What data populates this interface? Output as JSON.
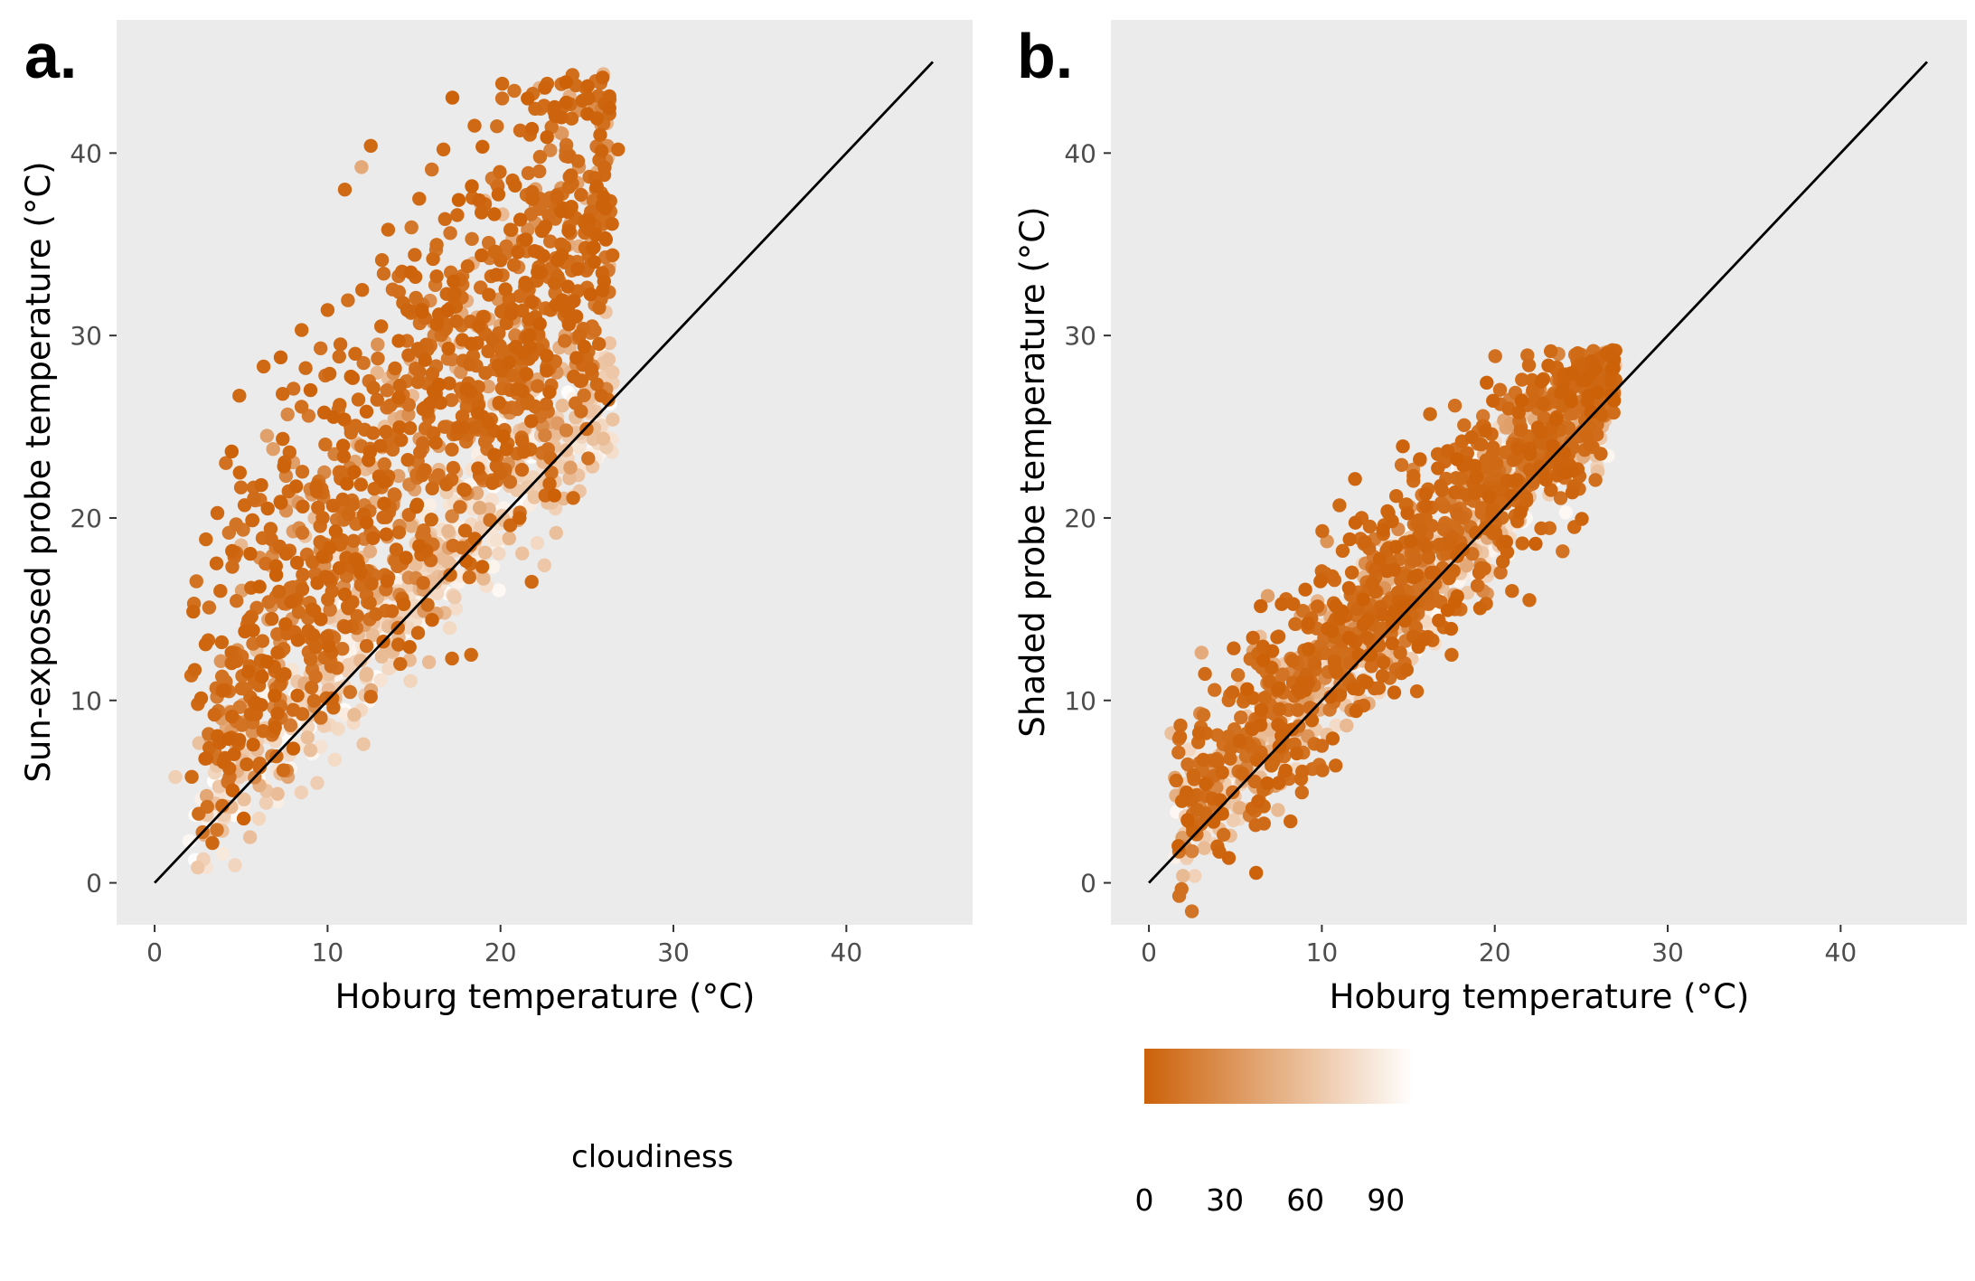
{
  "chart_data": [
    {
      "panel_label": "a.",
      "type": "scatter",
      "xlabel": "Hoburg temperature (°C)",
      "ylabel": "Sun-exposed probe temperature (°C)",
      "xlim": [
        -2.2,
        47.3
      ],
      "ylim": [
        -2.3,
        47.3
      ],
      "x_ticks": [
        0,
        10,
        20,
        30,
        40
      ],
      "y_ticks": [
        0,
        10,
        20,
        30,
        40
      ],
      "x_tick_labels": [
        "0",
        "10",
        "20",
        "30",
        "40"
      ],
      "y_tick_labels": [
        "0",
        "10",
        "20",
        "30",
        "40"
      ],
      "background": "#ebebeb",
      "grid": false,
      "reference_line": {
        "from": [
          0,
          0
        ],
        "to": [
          45,
          45
        ],
        "color": "#000000"
      },
      "color_variable": "cloudiness",
      "approximate_point_count": 1800,
      "points": [
        [
          1.2,
          5.8,
          70
        ],
        [
          2.0,
          2.3,
          95
        ],
        [
          2.5,
          9.8,
          5
        ],
        [
          3.1,
          13.3,
          5
        ],
        [
          3.4,
          7.5,
          60
        ],
        [
          3.5,
          3.3,
          90
        ],
        [
          3.8,
          16.0,
          5
        ],
        [
          4.1,
          8.0,
          40
        ],
        [
          4.3,
          10.5,
          10
        ],
        [
          4.6,
          5.5,
          80
        ],
        [
          4.9,
          26.7,
          5
        ],
        [
          5.0,
          18.5,
          55
        ],
        [
          5.2,
          20.7,
          5
        ],
        [
          5.4,
          11.5,
          15
        ],
        [
          5.6,
          14.6,
          5
        ],
        [
          5.9,
          6.8,
          75
        ],
        [
          6.1,
          21.0,
          10
        ],
        [
          6.3,
          28.3,
          5
        ],
        [
          6.5,
          24.5,
          40
        ],
        [
          6.7,
          17.4,
          45
        ],
        [
          6.9,
          9.6,
          70
        ],
        [
          7.2,
          12.5,
          85
        ],
        [
          7.4,
          26.8,
          5
        ],
        [
          7.6,
          20.4,
          30
        ],
        [
          7.8,
          23.6,
          5
        ],
        [
          8.0,
          16.2,
          10
        ],
        [
          8.3,
          11.0,
          90
        ],
        [
          8.5,
          30.3,
          5
        ],
        [
          8.7,
          19.0,
          60
        ],
        [
          8.9,
          25.6,
          15
        ],
        [
          9.2,
          13.7,
          80
        ],
        [
          9.4,
          21.8,
          5
        ],
        [
          9.6,
          29.3,
          10
        ],
        [
          9.8,
          17.5,
          50
        ],
        [
          10.0,
          31.4,
          5
        ],
        [
          10.2,
          15.4,
          85
        ],
        [
          10.4,
          23.5,
          20
        ],
        [
          10.7,
          26.2,
          5
        ],
        [
          10.9,
          18.4,
          70
        ],
        [
          11.0,
          38.0,
          5
        ],
        [
          11.2,
          20.2,
          5
        ],
        [
          11.4,
          14.6,
          90
        ],
        [
          11.6,
          29.0,
          5
        ],
        [
          11.8,
          24.0,
          45
        ],
        [
          12.0,
          32.5,
          5
        ],
        [
          12.2,
          17.0,
          80
        ],
        [
          12.4,
          27.5,
          10
        ],
        [
          12.5,
          40.4,
          5
        ],
        [
          12.7,
          21.6,
          5
        ],
        [
          12.9,
          16.0,
          95
        ],
        [
          13.1,
          30.5,
          5
        ],
        [
          13.3,
          25.0,
          60
        ],
        [
          13.5,
          35.8,
          5
        ],
        [
          13.7,
          19.3,
          85
        ],
        [
          13.9,
          28.2,
          5
        ],
        [
          14.1,
          22.3,
          40
        ],
        [
          14.3,
          33.5,
          5
        ],
        [
          14.5,
          14.5,
          90
        ],
        [
          14.7,
          26.2,
          10
        ],
        [
          14.9,
          31.3,
          5
        ],
        [
          15.1,
          18.6,
          75
        ],
        [
          15.3,
          37.5,
          5
        ],
        [
          15.5,
          23.8,
          15
        ],
        [
          15.7,
          29.5,
          5
        ],
        [
          15.9,
          20.7,
          90
        ],
        [
          16.1,
          34.2,
          5
        ],
        [
          16.3,
          27.3,
          50
        ],
        [
          16.5,
          16.3,
          80
        ],
        [
          16.7,
          40.2,
          5
        ],
        [
          16.9,
          25.0,
          20
        ],
        [
          17.1,
          31.5,
          5
        ],
        [
          17.3,
          21.5,
          85
        ],
        [
          17.5,
          36.6,
          5
        ],
        [
          17.7,
          28.0,
          30
        ],
        [
          17.9,
          19.0,
          95
        ],
        [
          18.1,
          33.8,
          5
        ],
        [
          18.3,
          26.0,
          65
        ],
        [
          18.5,
          41.5,
          5
        ],
        [
          18.7,
          23.5,
          90
        ],
        [
          18.9,
          30.4,
          10
        ],
        [
          19.1,
          37.2,
          5
        ],
        [
          19.3,
          27.2,
          40
        ],
        [
          19.5,
          22.0,
          85
        ],
        [
          19.7,
          34.6,
          5
        ],
        [
          19.9,
          29.5,
          20
        ],
        [
          20.1,
          43.8,
          5
        ],
        [
          20.3,
          25.8,
          75
        ],
        [
          20.5,
          32.0,
          5
        ],
        [
          20.7,
          38.5,
          5
        ],
        [
          20.9,
          28.4,
          55
        ],
        [
          21.1,
          24.5,
          90
        ],
        [
          21.3,
          35.2,
          5
        ],
        [
          21.5,
          30.0,
          15
        ],
        [
          21.7,
          41.0,
          5
        ],
        [
          21.9,
          27.0,
          70
        ],
        [
          22.1,
          33.0,
          5
        ],
        [
          22.3,
          37.5,
          10
        ],
        [
          22.5,
          29.2,
          50
        ],
        [
          22.7,
          43.8,
          5
        ],
        [
          22.9,
          31.4,
          5
        ],
        [
          23.2,
          42.3,
          80
        ],
        [
          23.5,
          35.0,
          5
        ],
        [
          23.8,
          24.8,
          20
        ],
        [
          24.0,
          38.7,
          5
        ],
        [
          24.3,
          31.0,
          40
        ],
        [
          24.6,
          27.5,
          5
        ],
        [
          24.9,
          34.8,
          5
        ],
        [
          25.3,
          30.5,
          10
        ],
        [
          26.0,
          38.8,
          5
        ],
        [
          26.8,
          40.2,
          5
        ],
        [
          9.0,
          9.2,
          60
        ],
        [
          10.5,
          11.2,
          95
        ],
        [
          12.0,
          13.0,
          85
        ],
        [
          13.5,
          15.0,
          90
        ],
        [
          15.0,
          16.2,
          95
        ],
        [
          16.5,
          18.0,
          85
        ],
        [
          18.0,
          19.5,
          90
        ],
        [
          19.5,
          21.0,
          80
        ],
        [
          21.0,
          22.3,
          70
        ],
        [
          22.2,
          23.5,
          65
        ],
        [
          17.2,
          12.3,
          5
        ],
        [
          18.3,
          12.5,
          5
        ],
        [
          21.8,
          16.5,
          5
        ],
        [
          24.2,
          21.1,
          5
        ],
        [
          12.5,
          10.2,
          5
        ],
        [
          14.2,
          12.0,
          5
        ]
      ]
    },
    {
      "panel_label": "b.",
      "type": "scatter",
      "xlabel": "Hoburg temperature (°C)",
      "ylabel": "Shaded probe temperature (°C)",
      "xlim": [
        -2.2,
        47.3
      ],
      "ylim": [
        -2.3,
        47.3
      ],
      "x_ticks": [
        0,
        10,
        20,
        30,
        40
      ],
      "y_ticks": [
        0,
        10,
        20,
        30,
        40
      ],
      "x_tick_labels": [
        "0",
        "10",
        "20",
        "30",
        "40"
      ],
      "y_tick_labels": [
        "0",
        "10",
        "20",
        "30",
        "40"
      ],
      "background": "#ebebeb",
      "grid": false,
      "reference_line": {
        "from": [
          0,
          0
        ],
        "to": [
          45,
          45
        ],
        "color": "#000000"
      },
      "color_variable": "cloudiness",
      "approximate_point_count": 1800,
      "points": [
        [
          1.3,
          8.2,
          60
        ],
        [
          1.8,
          8.0,
          5
        ],
        [
          2.3,
          2.4,
          90
        ],
        [
          2.8,
          4.6,
          80
        ],
        [
          3.3,
          8.2,
          5
        ],
        [
          3.6,
          6.5,
          40
        ],
        [
          3.9,
          5.2,
          95
        ],
        [
          4.3,
          7.6,
          10
        ],
        [
          4.6,
          4.8,
          70
        ],
        [
          5.0,
          8.6,
          85
        ],
        [
          5.4,
          6.0,
          5
        ],
        [
          5.7,
          10.2,
          20
        ],
        [
          6.1,
          7.5,
          90
        ],
        [
          6.4,
          9.0,
          5
        ],
        [
          6.8,
          11.5,
          95
        ],
        [
          7.1,
          8.3,
          60
        ],
        [
          7.5,
          13.5,
          5
        ],
        [
          7.8,
          10.3,
          80
        ],
        [
          8.2,
          12.3,
          15
        ],
        [
          8.5,
          9.5,
          90
        ],
        [
          8.8,
          5.7,
          5
        ],
        [
          9.2,
          14.0,
          5
        ],
        [
          9.5,
          11.6,
          85
        ],
        [
          9.9,
          15.0,
          30
        ],
        [
          10.2,
          12.2,
          90
        ],
        [
          10.6,
          16.8,
          5
        ],
        [
          10.9,
          13.5,
          60
        ],
        [
          11.2,
          18.2,
          5
        ],
        [
          11.6,
          11.0,
          5
        ],
        [
          11.9,
          15.5,
          75
        ],
        [
          12.3,
          20.0,
          5
        ],
        [
          12.6,
          14.5,
          90
        ],
        [
          12.9,
          17.3,
          10
        ],
        [
          13.3,
          13.0,
          5
        ],
        [
          13.6,
          19.6,
          5
        ],
        [
          14.0,
          16.5,
          85
        ],
        [
          14.3,
          21.2,
          5
        ],
        [
          14.6,
          11.5,
          5
        ],
        [
          15.0,
          18.3,
          40
        ],
        [
          15.3,
          22.3,
          5
        ],
        [
          15.7,
          16.0,
          95
        ],
        [
          16.0,
          20.0,
          5
        ],
        [
          16.4,
          13.3,
          5
        ],
        [
          16.7,
          23.5,
          5
        ],
        [
          17.0,
          18.5,
          80
        ],
        [
          17.4,
          21.0,
          20
        ],
        [
          17.7,
          15.0,
          5
        ],
        [
          18.1,
          24.2,
          5
        ],
        [
          18.4,
          19.8,
          90
        ],
        [
          18.7,
          22.5,
          10
        ],
        [
          19.1,
          17.0,
          5
        ],
        [
          19.4,
          25.0,
          5
        ],
        [
          19.8,
          21.5,
          70
        ],
        [
          20.1,
          23.0,
          5
        ],
        [
          20.5,
          18.5,
          5
        ],
        [
          20.8,
          26.0,
          5
        ],
        [
          21.1,
          22.3,
          85
        ],
        [
          21.5,
          24.8,
          5
        ],
        [
          21.8,
          20.0,
          95
        ],
        [
          22.2,
          27.0,
          5
        ],
        [
          22.5,
          23.8,
          60
        ],
        [
          22.9,
          26.2,
          5
        ],
        [
          23.2,
          21.5,
          80
        ],
        [
          23.5,
          28.2,
          5
        ],
        [
          23.9,
          25.0,
          10
        ],
        [
          24.2,
          22.5,
          90
        ],
        [
          24.6,
          19.5,
          5
        ],
        [
          25.0,
          27.5,
          5
        ],
        [
          25.5,
          24.0,
          5
        ],
        [
          26.0,
          26.0,
          5
        ],
        [
          26.8,
          29.2,
          5
        ],
        [
          26.9,
          27.5,
          90
        ],
        [
          25.5,
          27.8,
          85
        ],
        [
          24.5,
          27.0,
          90
        ],
        [
          23.0,
          28.0,
          85
        ],
        [
          21.0,
          16.0,
          5
        ],
        [
          22.0,
          15.5,
          5
        ],
        [
          19.5,
          15.3,
          5
        ],
        [
          17.5,
          12.5,
          5
        ],
        [
          15.5,
          10.5,
          5
        ]
      ]
    }
  ],
  "legend": {
    "title": "cloudiness",
    "type": "colorbar",
    "range": [
      0,
      100
    ],
    "ticks": [
      "0",
      "30",
      "60",
      "90"
    ],
    "tick_values": [
      0,
      30,
      60,
      90
    ],
    "color_low": "#cc6108",
    "color_high": "#ffffff"
  }
}
